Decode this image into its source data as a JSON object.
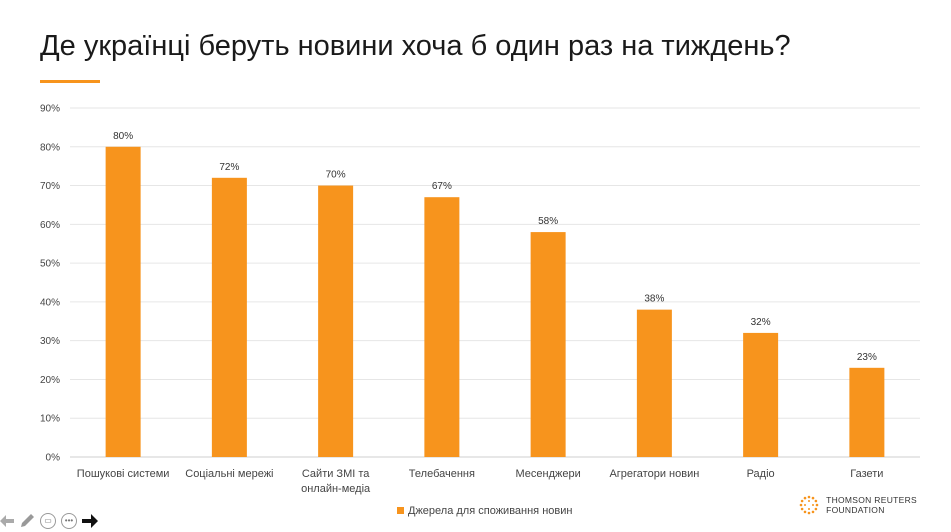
{
  "slide": {
    "title": "Де українці беруть новини хоча б один раз на тиждень?"
  },
  "brand": {
    "line1": "THOMSON REUTERS",
    "line2": "FOUNDATION"
  },
  "colors": {
    "bar": "#f7941d",
    "accent": "#f7941d",
    "grid": "#e6e6e6"
  },
  "chart_data": {
    "type": "bar",
    "categories": [
      [
        "Пошукові системи"
      ],
      [
        "Соціальні мережі"
      ],
      [
        "Сайти ЗМІ та",
        "онлайн-медіа"
      ],
      [
        "Телебачення"
      ],
      [
        "Месенджери"
      ],
      [
        "Агрегатори новин"
      ],
      [
        "Радіо"
      ],
      [
        "Газети"
      ]
    ],
    "series": [
      {
        "name": "Джерела для споживання новин",
        "values": [
          80,
          72,
          70,
          67,
          58,
          38,
          32,
          23
        ]
      }
    ],
    "data_labels": [
      "80%",
      "72%",
      "70%",
      "67%",
      "58%",
      "38%",
      "32%",
      "23%"
    ],
    "y_ticks": [
      "0%",
      "10%",
      "20%",
      "30%",
      "40%",
      "50%",
      "60%",
      "70%",
      "80%",
      "90%"
    ],
    "ylim": [
      0,
      90
    ],
    "grid": true,
    "legend": "bottom-center"
  },
  "nav_icons": [
    "back-arrow-icon",
    "pen-icon",
    "slides-icon",
    "more-icon",
    "forward-arrow-icon"
  ]
}
